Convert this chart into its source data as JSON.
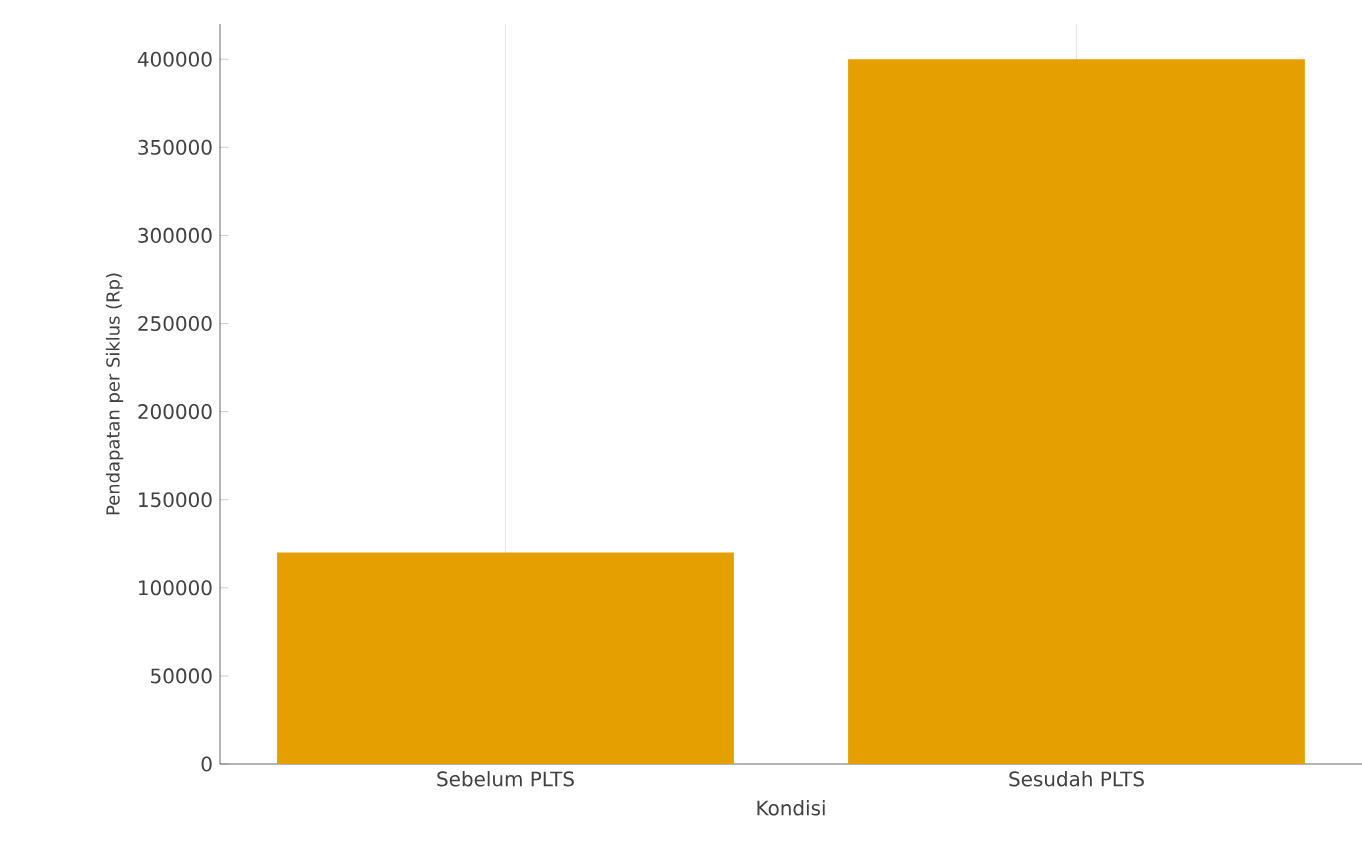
{
  "chart_data": {
    "type": "bar",
    "xlabel": "Kondisi",
    "ylabel": "Pendapatan per Siklus (Rp)",
    "categories": [
      "Sebelum PLTS",
      "Sesudah PLTS"
    ],
    "values": [
      120000,
      400000
    ],
    "color": "#e69f00",
    "ylim": [
      0,
      420000
    ],
    "yticks": [
      0,
      50000,
      100000,
      150000,
      200000,
      250000,
      300000,
      350000,
      400000
    ],
    "grid": "x"
  }
}
